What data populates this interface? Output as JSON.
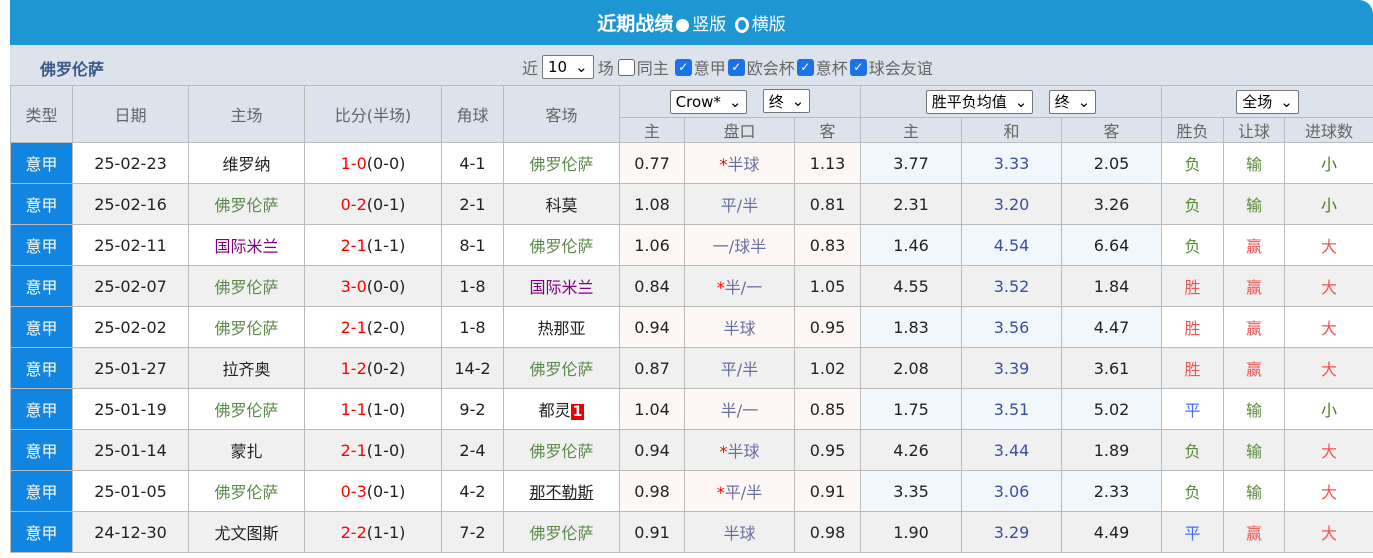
{
  "header": {
    "title": "近期战绩",
    "options": [
      {
        "label": "竖版",
        "selected": true
      },
      {
        "label": "横版",
        "selected": false
      }
    ]
  },
  "team": "佛罗伦萨",
  "filters": {
    "near_label": "近",
    "count": "10",
    "unit_label": "场",
    "checkboxes": [
      {
        "label": "同主",
        "checked": false
      },
      {
        "label": "意甲",
        "checked": true
      },
      {
        "label": "欧会杯",
        "checked": true
      },
      {
        "label": "意杯",
        "checked": true
      },
      {
        "label": "球会友谊",
        "checked": true
      }
    ]
  },
  "columns": {
    "type": "类型",
    "date": "日期",
    "home": "主场",
    "score": "比分(半场)",
    "corner": "角球",
    "away": "客场",
    "company_select": "Crow*",
    "final_select1": "终",
    "avg_select": "胜平负均值",
    "final_select2": "终",
    "period_select": "全场",
    "sub": [
      "主",
      "盘口",
      "客",
      "主",
      "和",
      "客",
      "胜负",
      "让球",
      "进球数"
    ]
  },
  "colors": {
    "type_bg": "#1185e0",
    "header_bg": "#1e96d4",
    "highlight_team": "#5b8a4a",
    "score": "#ff0000"
  },
  "rows": [
    {
      "type": "意甲",
      "date": "25-02-23",
      "home": "维罗纳",
      "score": "1-0",
      "half": "(0-0)",
      "corner": "4-1",
      "away": "佛罗伦萨",
      "o1": "0.77",
      "hc_star": "*",
      "hc": "半球",
      "o2": "1.13",
      "w": "3.77",
      "d": "3.33",
      "l": "2.05",
      "res": "负",
      "hres": "输",
      "ou": "小"
    },
    {
      "type": "意甲",
      "date": "25-02-16",
      "home": "佛罗伦萨",
      "score": "0-2",
      "half": "(0-1)",
      "corner": "2-1",
      "away": "科莫",
      "o1": "1.08",
      "hc_star": "",
      "hc": "平/半",
      "o2": "0.81",
      "w": "2.31",
      "d": "3.20",
      "l": "3.26",
      "res": "负",
      "hres": "输",
      "ou": "小"
    },
    {
      "type": "意甲",
      "date": "25-02-11",
      "home": "国际米兰",
      "score": "2-1",
      "half": "(1-1)",
      "corner": "8-1",
      "away": "佛罗伦萨",
      "o1": "1.06",
      "hc_star": "",
      "hc": "一/球半",
      "o2": "0.83",
      "w": "1.46",
      "d": "4.54",
      "l": "6.64",
      "res": "负",
      "hres": "赢",
      "ou": "大"
    },
    {
      "type": "意甲",
      "date": "25-02-07",
      "home": "佛罗伦萨",
      "score": "3-0",
      "half": "(0-0)",
      "corner": "1-8",
      "away": "国际米兰",
      "o1": "0.84",
      "hc_star": "*",
      "hc": "半/一",
      "o2": "1.05",
      "w": "4.55",
      "d": "3.52",
      "l": "1.84",
      "res": "胜",
      "hres": "赢",
      "ou": "大"
    },
    {
      "type": "意甲",
      "date": "25-02-02",
      "home": "佛罗伦萨",
      "score": "2-1",
      "half": "(2-0)",
      "corner": "1-8",
      "away": "热那亚",
      "o1": "0.94",
      "hc_star": "",
      "hc": "半球",
      "o2": "0.95",
      "w": "1.83",
      "d": "3.56",
      "l": "4.47",
      "res": "胜",
      "hres": "赢",
      "ou": "大"
    },
    {
      "type": "意甲",
      "date": "25-01-27",
      "home": "拉齐奥",
      "score": "1-2",
      "half": "(0-2)",
      "corner": "14-2",
      "away": "佛罗伦萨",
      "o1": "0.87",
      "hc_star": "",
      "hc": "平/半",
      "o2": "1.02",
      "w": "2.08",
      "d": "3.39",
      "l": "3.61",
      "res": "胜",
      "hres": "赢",
      "ou": "大"
    },
    {
      "type": "意甲",
      "date": "25-01-19",
      "home": "佛罗伦萨",
      "score": "1-1",
      "half": "(1-0)",
      "corner": "9-2",
      "away": "都灵",
      "away_card": "1",
      "o1": "1.04",
      "hc_star": "",
      "hc": "半/一",
      "o2": "0.85",
      "w": "1.75",
      "d": "3.51",
      "l": "5.02",
      "res": "平",
      "hres": "输",
      "ou": "小"
    },
    {
      "type": "意甲",
      "date": "25-01-14",
      "home": "蒙扎",
      "score": "2-1",
      "half": "(1-0)",
      "corner": "2-4",
      "away": "佛罗伦萨",
      "o1": "0.94",
      "hc_star": "*",
      "hc": "半球",
      "o2": "0.95",
      "w": "4.26",
      "d": "3.44",
      "l": "1.89",
      "res": "负",
      "hres": "输",
      "ou": "大"
    },
    {
      "type": "意甲",
      "date": "25-01-05",
      "home": "佛罗伦萨",
      "score": "0-3",
      "half": "(0-1)",
      "corner": "4-2",
      "away": "那不勒斯",
      "o1": "0.98",
      "hc_star": "*",
      "hc": "平/半",
      "o2": "0.91",
      "w": "3.35",
      "d": "3.06",
      "l": "2.33",
      "res": "负",
      "hres": "输",
      "ou": "大"
    },
    {
      "type": "意甲",
      "date": "24-12-30",
      "home": "尤文图斯",
      "score": "2-2",
      "half": "(1-1)",
      "corner": "7-2",
      "away": "佛罗伦萨",
      "o1": "0.91",
      "hc_star": "",
      "hc": "半球",
      "o2": "0.98",
      "w": "1.90",
      "d": "3.29",
      "l": "4.49",
      "res": "平",
      "hres": "赢",
      "ou": "大"
    }
  ]
}
